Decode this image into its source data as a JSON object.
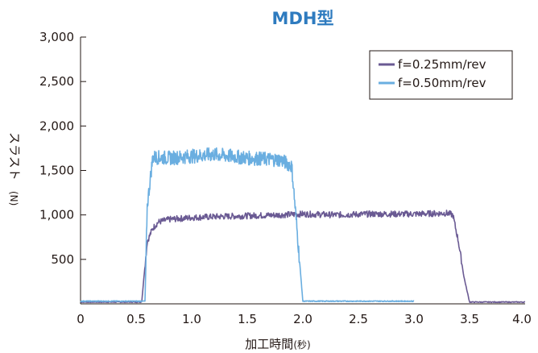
{
  "chart_data": {
    "type": "line",
    "title": "MDH型",
    "xlabel": "加工時間",
    "xlabel_unit": "(秒)",
    "ylabel": "スラスト",
    "ylabel_unit": "(N)",
    "xlim": [
      0,
      4.0
    ],
    "ylim": [
      0,
      3000
    ],
    "xticks": [
      0,
      0.5,
      1.0,
      1.5,
      2.0,
      2.5,
      3.0,
      3.5,
      4.0
    ],
    "xtick_labels": [
      "0",
      "0.5",
      "1.0",
      "1.5",
      "2.0",
      "2.5",
      "3.0",
      "3.5",
      "4.0"
    ],
    "yticks": [
      500,
      1000,
      1500,
      2000,
      2500,
      3000
    ],
    "ytick_labels": [
      "500",
      "1,000",
      "1,500",
      "2,000",
      "2,500",
      "3,000"
    ],
    "grid": false,
    "legend_position": "top-right",
    "series": [
      {
        "name": "f=0.25mm/rev",
        "color": "#6a5a93",
        "x": [
          0,
          0.55,
          0.6,
          0.65,
          0.7,
          0.8,
          1.0,
          1.2,
          1.5,
          1.8,
          2.0,
          2.3,
          2.6,
          3.0,
          3.3,
          3.35,
          3.4,
          3.45,
          3.5,
          4.0
        ],
        "y": [
          20,
          20,
          700,
          850,
          920,
          950,
          970,
          980,
          990,
          1000,
          1010,
          1000,
          1010,
          1010,
          1020,
          1000,
          700,
          300,
          20,
          20
        ]
      },
      {
        "name": "f=0.50mm/rev",
        "color": "#6aaee0",
        "x": [
          0,
          0.58,
          0.6,
          0.65,
          0.8,
          1.0,
          1.2,
          1.5,
          1.8,
          1.9,
          1.95,
          2.0,
          3.0
        ],
        "y": [
          30,
          30,
          1100,
          1650,
          1640,
          1660,
          1680,
          1640,
          1620,
          1550,
          800,
          30,
          30
        ]
      }
    ]
  }
}
